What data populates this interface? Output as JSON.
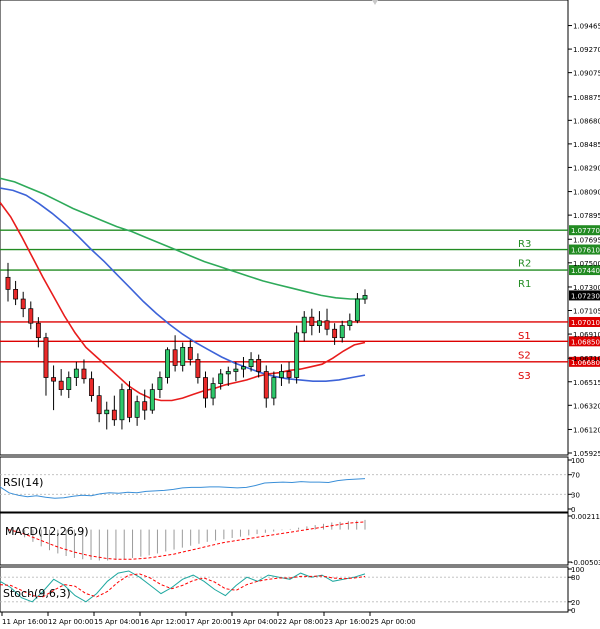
{
  "chart_data": {
    "type": "candlestick",
    "instrument_timeframe": "",
    "main": {
      "ylim": [
        1.05925,
        1.0966
      ],
      "yticks": [
        "1.09465",
        "1.09270",
        "1.09075",
        "1.08875",
        "1.08680",
        "1.08485",
        "1.08290",
        "1.08090",
        "1.07895",
        "1.07695",
        "1.07500",
        "1.07300",
        "1.07105",
        "1.06910",
        "1.06710",
        "1.06515",
        "1.06320",
        "1.06120",
        "1.05925"
      ],
      "pivot_levels": [
        {
          "name": "R3",
          "value": 1.0777,
          "label": "1.07770",
          "color": "#228b22"
        },
        {
          "name": "R2",
          "value": 1.0761,
          "label": "1.07610",
          "color": "#228b22"
        },
        {
          "name": "R1",
          "value": 1.0744,
          "label": "1.07440",
          "color": "#228b22"
        },
        {
          "name": "S1",
          "value": 1.0701,
          "label": "1.07010",
          "color": "#dd0000"
        },
        {
          "name": "S2",
          "value": 1.0685,
          "label": "1.06850",
          "color": "#dd0000"
        },
        {
          "name": "S3",
          "value": 1.0668,
          "label": "1.06680",
          "color": "#dd0000"
        }
      ],
      "current_price": {
        "value": 1.0723,
        "label": "1.07230"
      },
      "candles": [
        [
          1.0738,
          1.075,
          1.0718,
          1.0728
        ],
        [
          1.0728,
          1.0735,
          1.0715,
          1.072
        ],
        [
          1.072,
          1.0726,
          1.0705,
          1.0712
        ],
        [
          1.0712,
          1.0718,
          1.0695,
          1.07
        ],
        [
          1.07,
          1.0705,
          1.068,
          1.0688
        ],
        [
          1.0688,
          1.0692,
          1.064,
          1.0655
        ],
        [
          1.0655,
          1.0665,
          1.0628,
          1.0652
        ],
        [
          1.0652,
          1.0662,
          1.064,
          1.0645
        ],
        [
          1.0645,
          1.066,
          1.0638,
          1.0655
        ],
        [
          1.0655,
          1.0668,
          1.0648,
          1.0662
        ],
        [
          1.0662,
          1.067,
          1.065,
          1.0654
        ],
        [
          1.0654,
          1.066,
          1.0635,
          1.064
        ],
        [
          1.064,
          1.0648,
          1.0618,
          1.0625
        ],
        [
          1.0625,
          1.0635,
          1.0612,
          1.0628
        ],
        [
          1.0628,
          1.064,
          1.0615,
          1.062
        ],
        [
          1.062,
          1.065,
          1.0612,
          1.0645
        ],
        [
          1.0645,
          1.0652,
          1.0618,
          1.0622
        ],
        [
          1.0622,
          1.064,
          1.0615,
          1.0635
        ],
        [
          1.0635,
          1.0645,
          1.062,
          1.0628
        ],
        [
          1.0628,
          1.065,
          1.0625,
          1.0645
        ],
        [
          1.0645,
          1.066,
          1.0638,
          1.0655
        ],
        [
          1.0655,
          1.068,
          1.065,
          1.0678
        ],
        [
          1.0678,
          1.069,
          1.066,
          1.0665
        ],
        [
          1.0665,
          1.0684,
          1.066,
          1.068
        ],
        [
          1.068,
          1.0686,
          1.0665,
          1.067
        ],
        [
          1.067,
          1.0675,
          1.065,
          1.0655
        ],
        [
          1.0655,
          1.066,
          1.063,
          1.0638
        ],
        [
          1.0638,
          1.0655,
          1.0632,
          1.065
        ],
        [
          1.065,
          1.0662,
          1.0645,
          1.0658
        ],
        [
          1.0658,
          1.0664,
          1.0648,
          1.066
        ],
        [
          1.066,
          1.0668,
          1.0652,
          1.0662
        ],
        [
          1.0662,
          1.0672,
          1.0655,
          1.0664
        ],
        [
          1.0664,
          1.0676,
          1.066,
          1.067
        ],
        [
          1.067,
          1.0674,
          1.0655,
          1.066
        ],
        [
          1.066,
          1.0665,
          1.063,
          1.0638
        ],
        [
          1.0638,
          1.066,
          1.0632,
          1.0655
        ],
        [
          1.0655,
          1.0666,
          1.0648,
          1.066
        ],
        [
          1.066,
          1.0668,
          1.065,
          1.0655
        ],
        [
          1.0655,
          1.0698,
          1.065,
          1.0692
        ],
        [
          1.0692,
          1.071,
          1.0685,
          1.0705
        ],
        [
          1.0705,
          1.0712,
          1.069,
          1.0698
        ],
        [
          1.0698,
          1.071,
          1.0692,
          1.0702
        ],
        [
          1.0702,
          1.0712,
          1.069,
          1.0695
        ],
        [
          1.0695,
          1.07,
          1.0682,
          1.0688
        ],
        [
          1.0688,
          1.0702,
          1.0684,
          1.0698
        ],
        [
          1.0698,
          1.0708,
          1.0694,
          1.0702
        ],
        [
          1.0702,
          1.0725,
          1.07,
          1.072
        ],
        [
          1.072,
          1.0728,
          1.0716,
          1.0723
        ]
      ],
      "sma_fast_red": [
        1.08,
        1.0788,
        1.0772,
        1.0755,
        1.0738,
        1.0722,
        1.0706,
        1.0692,
        1.068,
        1.0672,
        1.0664,
        1.0656,
        1.0648,
        1.0642,
        1.0638,
        1.0636,
        1.0636,
        1.0638,
        1.0641,
        1.0644,
        1.0646,
        1.0649,
        1.0651,
        1.0653,
        1.0656,
        1.0658,
        1.0659,
        1.0661,
        1.0662,
        1.0664,
        1.0666,
        1.0671,
        1.0677,
        1.0682,
        1.0684
      ],
      "sma_mid_blue": [
        1.0812,
        1.081,
        1.0806,
        1.0799,
        1.0791,
        1.0782,
        1.0772,
        1.0761,
        1.0751,
        1.074,
        1.0729,
        1.0718,
        1.0708,
        1.0699,
        1.0691,
        1.0684,
        1.0678,
        1.0672,
        1.0667,
        1.0663,
        1.0659,
        1.0656,
        1.0654,
        1.0653,
        1.0652,
        1.0652,
        1.0653,
        1.0655,
        1.0657
      ],
      "sma_slow_green": [
        1.082,
        1.0817,
        1.0812,
        1.0807,
        1.0801,
        1.0795,
        1.079,
        1.0785,
        1.078,
        1.0776,
        1.0771,
        1.0766,
        1.0761,
        1.0756,
        1.0751,
        1.0747,
        1.0743,
        1.0739,
        1.0735,
        1.0732,
        1.0729,
        1.0726,
        1.0723,
        1.0721,
        1.072,
        1.072
      ]
    },
    "xaxis_labels": [
      "11 Apr 16:00",
      "12 Apr 00:00",
      "15 Apr 04:00",
      "16 Apr 12:00",
      "17 Apr 20:00",
      "19 Apr 04:00",
      "22 Apr 08:00",
      "23 Apr 16:00",
      "25 Apr 00:00"
    ],
    "rsi": {
      "label": "RSI(14)",
      "ylim": [
        0,
        100
      ],
      "yticks": [
        "100",
        "70",
        "30",
        "0"
      ],
      "levels": [
        70,
        30
      ],
      "values": [
        45,
        33,
        28,
        25,
        27,
        24,
        22,
        23,
        26,
        28,
        27,
        31,
        33,
        32,
        34,
        33,
        36,
        37,
        38,
        40,
        43,
        44,
        44,
        45,
        45,
        44,
        43,
        44,
        48,
        53,
        54,
        55,
        54,
        56,
        55,
        55,
        54,
        58,
        60,
        61,
        62
      ]
    },
    "macd": {
      "label": "MACD(12,26,9)",
      "ylim": [
        -0.00503,
        0.00211
      ],
      "yticks": [
        "0.002111",
        "-0.005039"
      ],
      "hist": [
        0.0002,
        -0.0005,
        -0.0012,
        -0.0019,
        -0.0026,
        -0.0032,
        -0.0037,
        -0.0041,
        -0.0044,
        -0.0046,
        -0.0047,
        -0.0048,
        -0.0048,
        -0.0047,
        -0.0046,
        -0.0044,
        -0.0042,
        -0.004,
        -0.0037,
        -0.0034,
        -0.0031,
        -0.0028,
        -0.0025,
        -0.0022,
        -0.0019,
        -0.0017,
        -0.0015,
        -0.0013,
        -0.0011,
        -0.0009,
        -0.0007,
        -0.0005,
        -0.0003,
        -0.0001,
        0.0001,
        0.0003,
        0.0005,
        0.0007,
        0.0009,
        0.0011,
        0.0012,
        0.0013,
        0.0014,
        0.0015
      ],
      "signal": [
        0.0,
        -0.0003,
        -0.0007,
        -0.0012,
        -0.0017,
        -0.0022,
        -0.0027,
        -0.0031,
        -0.0035,
        -0.0038,
        -0.0041,
        -0.0043,
        -0.0045,
        -0.0046,
        -0.0046,
        -0.0046,
        -0.0045,
        -0.0044,
        -0.0042,
        -0.004,
        -0.0038,
        -0.0035,
        -0.0032,
        -0.0029,
        -0.0026,
        -0.0023,
        -0.002,
        -0.0018,
        -0.0016,
        -0.0014,
        -0.0012,
        -0.001,
        -0.0008,
        -0.0006,
        -0.0004,
        -0.0002,
        0.0,
        0.0002,
        0.0004,
        0.0006,
        0.0008,
        0.001,
        0.0011,
        0.0012
      ]
    },
    "stoch": {
      "label": "Stoch(9,6,3)",
      "ylim": [
        0,
        100
      ],
      "yticks": [
        "100",
        "80",
        "20",
        "0"
      ],
      "levels": [
        80,
        20
      ],
      "main_line": [
        70,
        55,
        30,
        20,
        45,
        75,
        60,
        35,
        20,
        40,
        70,
        90,
        95,
        80,
        60,
        40,
        55,
        75,
        85,
        70,
        50,
        35,
        60,
        80,
        70,
        85,
        80,
        75,
        90,
        80,
        85,
        70,
        75,
        80,
        88
      ],
      "signal_line": [
        62,
        60,
        48,
        35,
        32,
        48,
        62,
        58,
        40,
        32,
        45,
        68,
        85,
        88,
        78,
        62,
        52,
        60,
        72,
        78,
        68,
        52,
        48,
        62,
        70,
        75,
        78,
        78,
        82,
        82,
        83,
        78,
        76,
        78,
        82
      ]
    }
  }
}
